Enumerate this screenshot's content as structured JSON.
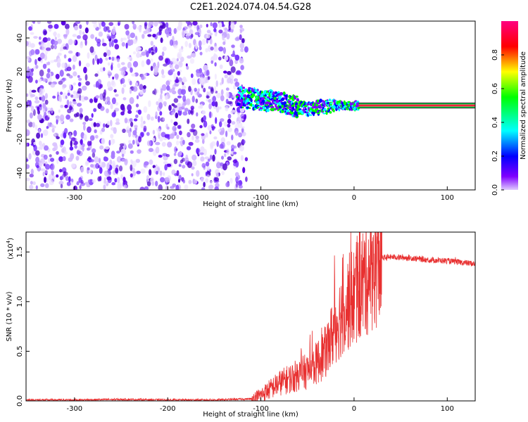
{
  "chart_data": [
    {
      "type": "heatmap",
      "title": "C2E1.2024.074.04.54.G28",
      "xlabel": "Height of straight line (km)",
      "ylabel": "Frequency (Hz)",
      "xlim": [
        -352,
        130
      ],
      "ylim": [
        -50,
        50
      ],
      "xticks": [
        -300,
        -200,
        -100,
        0,
        100
      ],
      "xtick_labels": [
        "-300",
        "-200",
        "-100",
        "0",
        "100"
      ],
      "yticks": [
        -40,
        -20,
        0,
        20,
        40
      ],
      "ytick_labels": [
        "-40",
        "-20",
        "0",
        "20",
        "40"
      ],
      "noise_region_x": [
        -352,
        -120
      ],
      "signal_track": [
        {
          "x": -125,
          "f": 5
        },
        {
          "x": -110,
          "f": 4
        },
        {
          "x": -95,
          "f": 3
        },
        {
          "x": -80,
          "f": 2
        },
        {
          "x": -65,
          "f": 0
        },
        {
          "x": -50,
          "f": -2
        },
        {
          "x": -40,
          "f": -1
        },
        {
          "x": -30,
          "f": -1
        },
        {
          "x": -20,
          "f": 0
        },
        {
          "x": -10,
          "f": 0
        },
        {
          "x": 5,
          "f": 0
        },
        {
          "x": 130,
          "f": 0
        }
      ],
      "colorbar": {
        "label": "Normalized spectral amplitude",
        "range": [
          0,
          1
        ],
        "ticks": [
          0.0,
          0.2,
          0.4,
          0.6,
          0.8
        ],
        "tick_labels": [
          "0.0",
          "0.2",
          "0.4",
          "0.6",
          "0.8"
        ],
        "colors": [
          "#e0ccff",
          "#7f00ff",
          "#0000ff",
          "#00ffff",
          "#00ff00",
          "#ffff00",
          "#ff0000",
          "#ff0080"
        ]
      }
    },
    {
      "type": "line",
      "xlabel": "Height of straight line (km)",
      "ylabel": "SNR (10 * v/v)",
      "ylabel_exponent": "(x10",
      "ylabel_exponent_power": "4",
      "ylabel_exponent_close": ")",
      "xlim": [
        -352,
        130
      ],
      "ylim": [
        0,
        1.7
      ],
      "xticks": [
        -300,
        -200,
        -100,
        0,
        100
      ],
      "xtick_labels": [
        "-300",
        "-200",
        "-100",
        "0",
        "100"
      ],
      "yticks": [
        0.0,
        0.5,
        1.0,
        1.5
      ],
      "ytick_labels": [
        "0.0",
        "0.5",
        "1.0",
        "1.5"
      ],
      "color": "#e83030",
      "series": [
        {
          "name": "SNR",
          "x": [
            -352,
            -300,
            -250,
            -200,
            -150,
            -110,
            -100,
            -90,
            -80,
            -70,
            -60,
            -50,
            -40,
            -30,
            -20,
            -10,
            0,
            10,
            20,
            30,
            40,
            60,
            80,
            100,
            120,
            130
          ],
          "y": [
            0.01,
            0.01,
            0.015,
            0.01,
            0.01,
            0.02,
            0.06,
            0.12,
            0.18,
            0.22,
            0.26,
            0.3,
            0.38,
            0.5,
            0.75,
            0.95,
            1.05,
            1.2,
            1.35,
            1.44,
            1.45,
            1.44,
            1.42,
            1.41,
            1.39,
            1.38
          ]
        }
      ]
    }
  ]
}
